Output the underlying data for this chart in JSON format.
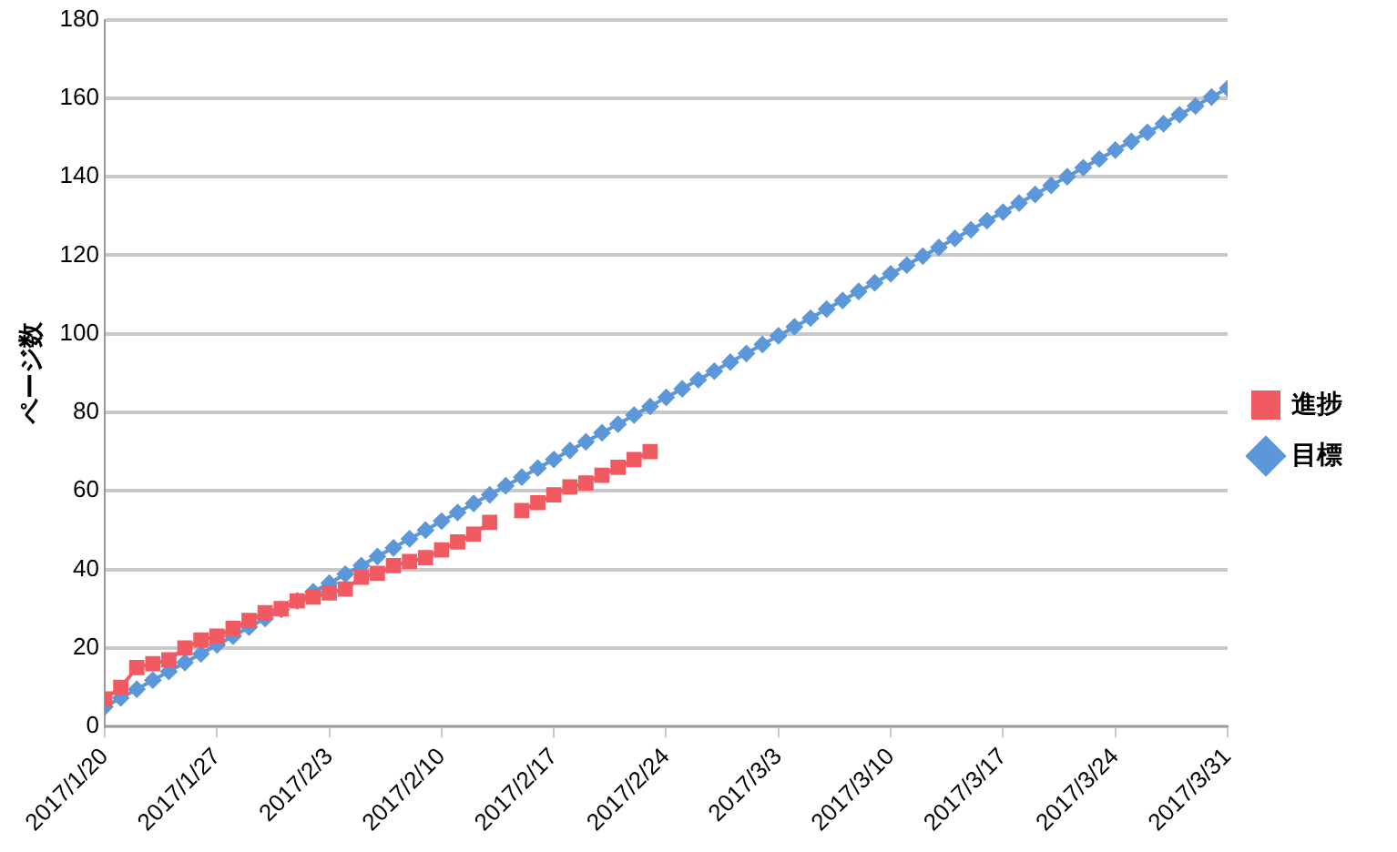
{
  "chart_data": {
    "type": "line",
    "ylabel": "ページ数",
    "ylim": [
      0,
      180
    ],
    "yticks": [
      0,
      20,
      40,
      60,
      80,
      100,
      120,
      140,
      160,
      180
    ],
    "xlim": [
      "2017-01-20",
      "2017-03-31"
    ],
    "xticks": [
      {
        "value": "2017-01-20",
        "label": "2017/1/20"
      },
      {
        "value": "2017-01-27",
        "label": "2017/1/27"
      },
      {
        "value": "2017-02-03",
        "label": "2017/2/3"
      },
      {
        "value": "2017-02-10",
        "label": "2017/2/10"
      },
      {
        "value": "2017-02-17",
        "label": "2017/2/17"
      },
      {
        "value": "2017-02-24",
        "label": "2017/2/24"
      },
      {
        "value": "2017-03-03",
        "label": "2017/3/3"
      },
      {
        "value": "2017-03-10",
        "label": "2017/3/10"
      },
      {
        "value": "2017-03-17",
        "label": "2017/3/17"
      },
      {
        "value": "2017-03-24",
        "label": "2017/3/24"
      },
      {
        "value": "2017-03-31",
        "label": "2017/3/31"
      }
    ],
    "grid": "y",
    "legend": "right",
    "x": [
      "2017-01-20",
      "2017-01-21",
      "2017-01-22",
      "2017-01-23",
      "2017-01-24",
      "2017-01-25",
      "2017-01-26",
      "2017-01-27",
      "2017-01-28",
      "2017-01-29",
      "2017-01-30",
      "2017-01-31",
      "2017-02-01",
      "2017-02-02",
      "2017-02-03",
      "2017-02-04",
      "2017-02-05",
      "2017-02-06",
      "2017-02-07",
      "2017-02-08",
      "2017-02-09",
      "2017-02-10",
      "2017-02-11",
      "2017-02-12",
      "2017-02-13",
      "2017-02-14",
      "2017-02-15",
      "2017-02-16",
      "2017-02-17",
      "2017-02-18",
      "2017-02-19",
      "2017-02-20",
      "2017-02-21",
      "2017-02-22",
      "2017-02-23",
      "2017-02-24",
      "2017-02-25",
      "2017-02-26",
      "2017-02-27",
      "2017-02-28",
      "2017-03-01",
      "2017-03-02",
      "2017-03-03",
      "2017-03-04",
      "2017-03-05",
      "2017-03-06",
      "2017-03-07",
      "2017-03-08",
      "2017-03-09",
      "2017-03-10",
      "2017-03-11",
      "2017-03-12",
      "2017-03-13",
      "2017-03-14",
      "2017-03-15",
      "2017-03-16",
      "2017-03-17",
      "2017-03-18",
      "2017-03-19",
      "2017-03-20",
      "2017-03-21",
      "2017-03-22",
      "2017-03-23",
      "2017-03-24",
      "2017-03-25",
      "2017-03-26",
      "2017-03-27",
      "2017-03-28",
      "2017-03-29",
      "2017-03-30",
      "2017-03-31"
    ],
    "series": [
      {
        "name": "進捗",
        "color": "#f25a62",
        "marker": "square",
        "x": [
          "2017-01-20",
          "2017-01-21",
          "2017-01-22",
          "2017-01-23",
          "2017-01-24",
          "2017-01-25",
          "2017-01-26",
          "2017-01-27",
          "2017-01-28",
          "2017-01-29",
          "2017-01-30",
          "2017-01-31",
          "2017-02-01",
          "2017-02-02",
          "2017-02-03",
          "2017-02-04",
          "2017-02-05",
          "2017-02-06",
          "2017-02-07",
          "2017-02-08",
          "2017-02-09",
          "2017-02-10",
          "2017-02-11",
          "2017-02-12",
          "2017-02-13",
          "2017-02-14",
          "2017-02-15",
          "2017-02-16",
          "2017-02-17",
          "2017-02-18",
          "2017-02-19",
          "2017-02-20",
          "2017-02-21",
          "2017-02-22",
          "2017-02-23"
        ],
        "values": [
          7,
          10,
          15,
          16,
          17,
          20,
          22,
          23,
          25,
          27,
          29,
          30,
          32,
          33,
          34,
          35,
          38,
          39,
          41,
          42,
          43,
          45,
          47,
          49,
          52,
          null,
          55,
          57,
          59,
          61,
          62,
          64,
          66,
          68,
          70
        ]
      },
      {
        "name": "目標",
        "color": "#5b97d9",
        "marker": "diamond",
        "values": [
          5,
          7.3,
          9.5,
          11.8,
          14,
          16.3,
          18.5,
          20.8,
          23,
          25.3,
          27.5,
          29.8,
          32,
          34.3,
          36.5,
          38.8,
          41,
          43.3,
          45.5,
          47.8,
          50,
          52.3,
          54.5,
          56.8,
          59,
          61.3,
          63.5,
          65.8,
          68,
          70.3,
          72.5,
          74.8,
          77,
          79.3,
          81.5,
          83.8,
          86,
          88.3,
          90.5,
          92.8,
          95,
          97.3,
          99.5,
          101.8,
          104,
          106.3,
          108.5,
          110.8,
          113,
          115.3,
          117.5,
          119.8,
          122,
          124.3,
          126.5,
          128.8,
          131,
          133.3,
          135.5,
          137.8,
          140,
          142.3,
          144.5,
          146.8,
          149,
          151.3,
          153.5,
          155.8,
          158,
          160.3,
          162.5
        ]
      }
    ]
  }
}
